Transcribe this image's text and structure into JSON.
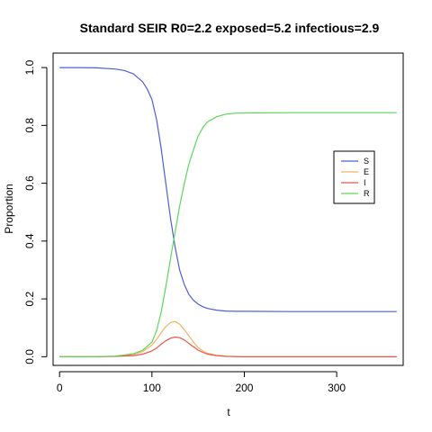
{
  "chart_data": {
    "type": "line",
    "title": "Standard SEIR R0=2.2 exposed=5.2 infectious=2.9",
    "xlabel": "t",
    "ylabel": "Proportion",
    "xlim": [
      -7,
      372
    ],
    "ylim": [
      -0.03,
      1.05
    ],
    "x_ticks": [
      0,
      100,
      200,
      300
    ],
    "y_ticks": [
      0.0,
      0.2,
      0.4,
      0.6,
      0.8,
      1.0
    ],
    "x_tick_labels": [
      "0",
      "100",
      "200",
      "300"
    ],
    "y_tick_labels": [
      "0.0",
      "0.2",
      "0.4",
      "0.6",
      "0.8",
      "1.0"
    ],
    "legend_position": "right",
    "grid": false,
    "series": [
      {
        "name": "S",
        "color": "#4d5fd6",
        "x": [
          0,
          20,
          40,
          60,
          70,
          80,
          90,
          95,
          100,
          105,
          110,
          115,
          120,
          125,
          130,
          135,
          140,
          145,
          150,
          155,
          160,
          170,
          180,
          190,
          200,
          250,
          300,
          365
        ],
        "values": [
          1.0,
          1.0,
          0.999,
          0.995,
          0.99,
          0.978,
          0.95,
          0.925,
          0.89,
          0.82,
          0.72,
          0.6,
          0.48,
          0.38,
          0.3,
          0.25,
          0.215,
          0.195,
          0.182,
          0.173,
          0.167,
          0.161,
          0.158,
          0.157,
          0.157,
          0.156,
          0.156,
          0.156
        ]
      },
      {
        "name": "E",
        "color": "#f5b25f",
        "x": [
          0,
          40,
          60,
          80,
          90,
          100,
          105,
          110,
          115,
          120,
          125,
          130,
          135,
          140,
          145,
          150,
          155,
          160,
          170,
          180,
          200,
          250,
          300,
          365
        ],
        "values": [
          0.0,
          0.0,
          0.002,
          0.008,
          0.018,
          0.04,
          0.06,
          0.083,
          0.104,
          0.118,
          0.122,
          0.113,
          0.094,
          0.072,
          0.05,
          0.032,
          0.02,
          0.012,
          0.005,
          0.002,
          0.0,
          0.0,
          0.0,
          0.0
        ]
      },
      {
        "name": "I",
        "color": "#e8574a",
        "x": [
          0,
          40,
          60,
          80,
          90,
          100,
          105,
          110,
          115,
          120,
          125,
          130,
          135,
          140,
          145,
          150,
          155,
          160,
          170,
          180,
          200,
          250,
          300,
          365
        ],
        "values": [
          0.0,
          0.0,
          0.001,
          0.004,
          0.009,
          0.02,
          0.03,
          0.043,
          0.055,
          0.064,
          0.068,
          0.066,
          0.058,
          0.046,
          0.034,
          0.023,
          0.015,
          0.009,
          0.004,
          0.001,
          0.0,
          0.0,
          0.0,
          0.0
        ]
      },
      {
        "name": "R",
        "color": "#5fd65a",
        "x": [
          0,
          40,
          60,
          80,
          90,
          100,
          105,
          110,
          115,
          120,
          125,
          130,
          135,
          140,
          145,
          150,
          155,
          160,
          170,
          180,
          190,
          200,
          250,
          300,
          365
        ],
        "values": [
          0.0,
          0.0,
          0.002,
          0.01,
          0.023,
          0.05,
          0.09,
          0.155,
          0.241,
          0.338,
          0.43,
          0.521,
          0.598,
          0.667,
          0.716,
          0.763,
          0.792,
          0.812,
          0.83,
          0.839,
          0.842,
          0.843,
          0.844,
          0.844,
          0.844
        ]
      }
    ]
  }
}
